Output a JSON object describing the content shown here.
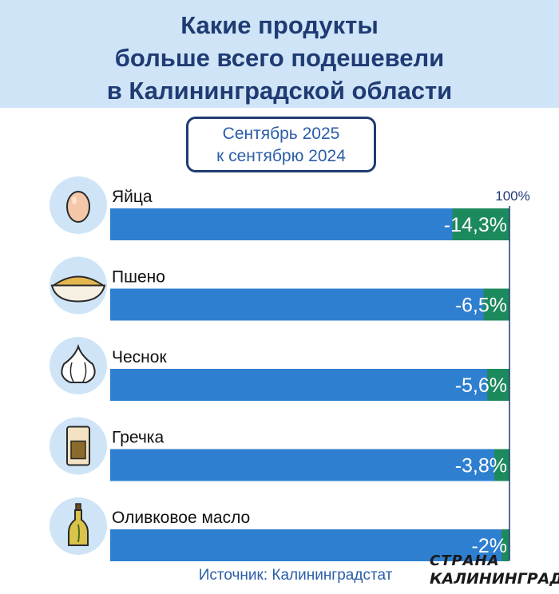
{
  "title": [
    "Какие продукты",
    "больше всего подешевели",
    "в Калининградской области"
  ],
  "period": [
    "Сентябрь 2025",
    "к сентябрю 2024"
  ],
  "source": "Источник: Калининградстат",
  "watermark": [
    "СТРАНА",
    "КАЛИНИНГРАД"
  ],
  "colors": {
    "bar": "#2f7fd0",
    "decrease": "#1d8a5e",
    "header_bg": "#cfe4f7",
    "title": "#1f3b73",
    "icon_bg": "#cfe4f7"
  },
  "chart_data": {
    "type": "bar",
    "orientation": "horizontal",
    "reference_label": "100%",
    "reference_value": 100,
    "categories": [
      "Яйца",
      "Пшено",
      "Чеснок",
      "Гречка",
      "Оливковое масло"
    ],
    "icons": [
      "egg-icon",
      "millet-bowl-icon",
      "garlic-icon",
      "buckwheat-bag-icon",
      "olive-oil-bottle-icon"
    ],
    "values": [
      -14.3,
      -6.5,
      -5.6,
      -3.8,
      -2
    ],
    "value_labels": [
      "-14,3%",
      "-6,5%",
      "-5,6%",
      "-3,8%",
      "-2%"
    ]
  }
}
